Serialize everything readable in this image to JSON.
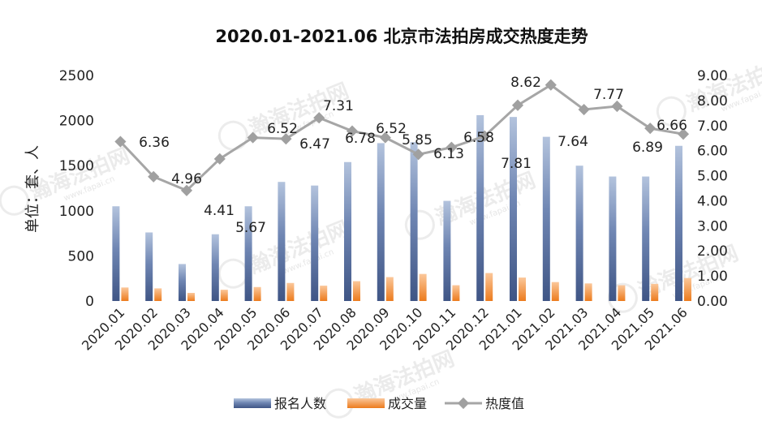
{
  "chart_data": {
    "type": "bar",
    "title": "2020.01-2021.06 北京市法拍房成交热度走势",
    "ylabel": "单位：套、人",
    "ylim": [
      0,
      2500
    ],
    "y2lim": [
      0,
      9
    ],
    "yticks": [
      "0",
      "500",
      "1000",
      "1500",
      "2000",
      "2500"
    ],
    "y2ticks": [
      "0.00",
      "1.00",
      "2.00",
      "3.00",
      "4.00",
      "5.00",
      "6.00",
      "7.00",
      "8.00",
      "9.00"
    ],
    "categories": [
      "2020.01",
      "2020.02",
      "2020.03",
      "2020.04",
      "2020.05",
      "2020.06",
      "2020.07",
      "2020.08",
      "2020.09",
      "2020.10",
      "2020.11",
      "2020.12",
      "2021.01",
      "2021.02",
      "2021.03",
      "2021.04",
      "2021.05",
      "2021.06"
    ],
    "series": [
      {
        "name": "报名人数",
        "type": "bar",
        "axis": "left",
        "color": "#4a6291",
        "values": [
          1050,
          760,
          410,
          740,
          1050,
          1320,
          1280,
          1540,
          1750,
          1760,
          1110,
          2060,
          2040,
          1820,
          1500,
          1380,
          1380,
          1720
        ]
      },
      {
        "name": "成交量",
        "type": "bar",
        "axis": "left",
        "color": "#f0862b",
        "values": [
          150,
          140,
          90,
          125,
          155,
          200,
          170,
          220,
          265,
          300,
          175,
          310,
          260,
          210,
          195,
          175,
          190,
          255
        ]
      },
      {
        "name": "热度值",
        "type": "line",
        "axis": "right",
        "color": "#a6a6a6",
        "values": [
          6.36,
          4.96,
          4.41,
          5.67,
          6.52,
          6.47,
          7.31,
          6.78,
          6.52,
          5.85,
          6.13,
          6.58,
          7.81,
          8.62,
          7.64,
          7.77,
          6.89,
          6.66
        ],
        "labels": [
          "6.36",
          "4.96",
          "4.41",
          "5.67",
          "6.52",
          "6.47",
          "7.31",
          "6.78",
          "6.52",
          "5.85",
          "6.13",
          "6.58",
          "7.81",
          "8.62",
          "7.64",
          "7.77",
          "6.89",
          "6.66"
        ]
      }
    ],
    "grid": false,
    "legend": "bottom",
    "watermark": "瀚海法拍网 www.fapai.cn"
  }
}
